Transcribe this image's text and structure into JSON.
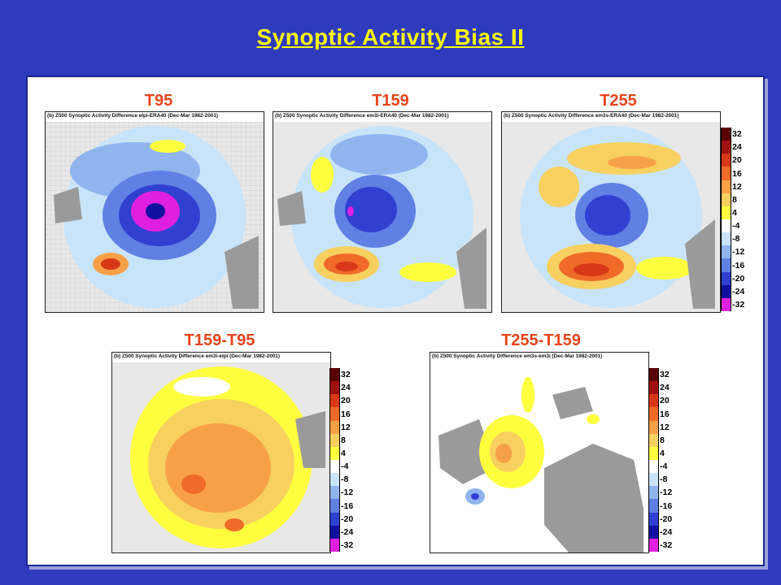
{
  "slide": {
    "title": "Synoptic Activity Bias II"
  },
  "panels": [
    {
      "id": "t95",
      "label": "T95",
      "caption": "(b) Z500 Synoptic Activity Difference elpi-ERA40 (Dec-Mar 1982-2001)"
    },
    {
      "id": "t159",
      "label": "T159",
      "caption": "(b) Z500 Synoptic Activity Difference em3i-ERA40 (Dec-Mar 1982-2001)"
    },
    {
      "id": "t255",
      "label": "T255",
      "caption": "(b) Z500 Synoptic Activity Difference em3s-ERA40 (Dec-Mar 1982-2001)"
    },
    {
      "id": "t159-t95",
      "label": "T159-T95",
      "caption": "(b) Z500 Synoptic Activity Difference em3i-elpi (Dec-Mar 1982-2001)"
    },
    {
      "id": "t255-t159",
      "label": "T255-T159",
      "caption": "(b) Z500 Synoptic Activity Difference em3s-em3i (Dec-Mar 1982-2001)"
    }
  ],
  "colorbar": {
    "ticks": [
      "32",
      "24",
      "20",
      "16",
      "12",
      "8",
      "4",
      "-4",
      "-8",
      "-12",
      "-16",
      "-20",
      "-24",
      "-32"
    ],
    "colors": [
      "#5a0000",
      "#a01010",
      "#d83818",
      "#f06a28",
      "#f7a048",
      "#f7d060",
      "#ffff40",
      "#ffffff",
      "#c8e4fa",
      "#90b4ee",
      "#6080e4",
      "#3040d0",
      "#1010a0",
      "#e020e0"
    ]
  },
  "colors": {
    "background": "#2e3bbd",
    "title": "#ffff00",
    "label": "#e8441a"
  }
}
